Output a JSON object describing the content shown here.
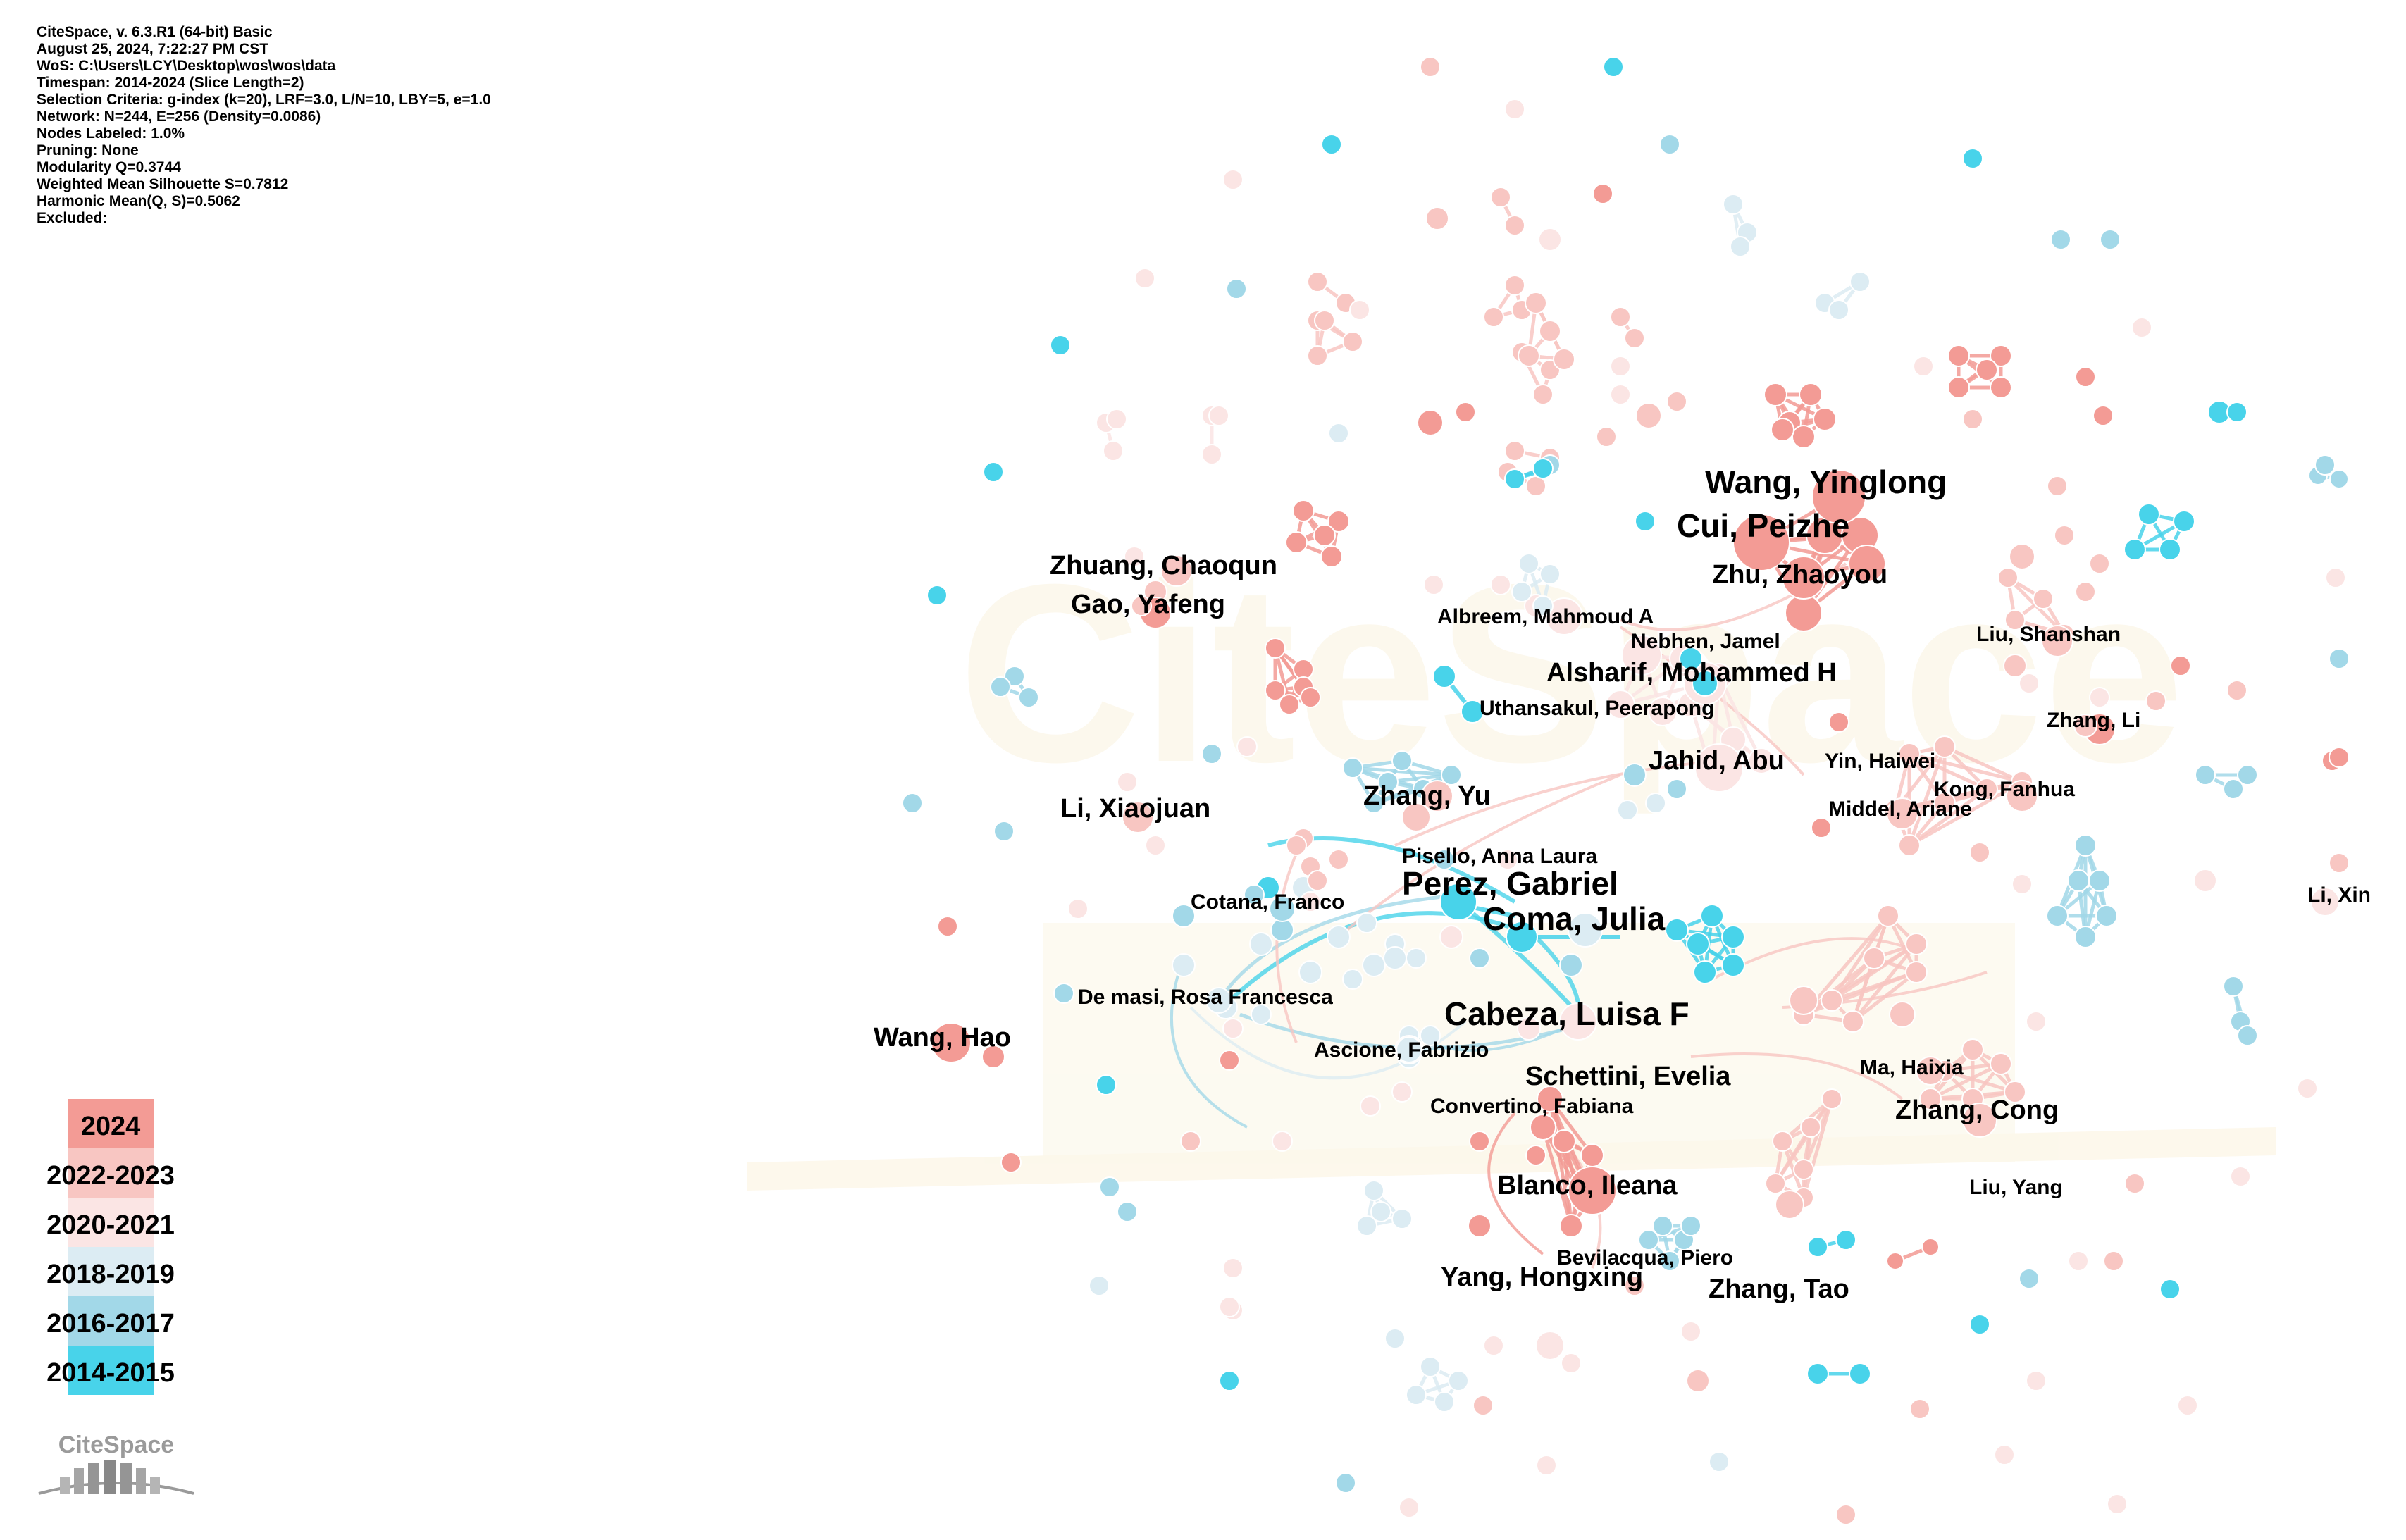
{
  "info": {
    "lines": [
      "CiteSpace, v. 6.3.R1 (64-bit) Basic",
      "August 25, 2024, 7:22:27 PM CST",
      "WoS: C:\\Users\\LCY\\Desktop\\wos\\wos\\data",
      "Timespan: 2014-2024 (Slice Length=2)",
      "Selection Criteria: g-index (k=20), LRF=3.0, L/N=10, LBY=5, e=1.0",
      "Network: N=244, E=256 (Density=0.0086)",
      "Nodes Labeled: 1.0%",
      "Pruning: None",
      "Modularity Q=0.3744",
      "Weighted Mean Silhouette S=0.7812",
      "Harmonic Mean(Q, S)=0.5062",
      "Excluded:"
    ]
  },
  "legend": [
    {
      "label": "2024",
      "color": "#f39b95"
    },
    {
      "label": "2022-2023",
      "color": "#f8c6c2"
    },
    {
      "label": "2020-2021",
      "color": "#fbe5e4"
    },
    {
      "label": "2018-2019",
      "color": "#dcecf3"
    },
    {
      "label": "2016-2017",
      "color": "#a2d8e8"
    },
    {
      "label": "2014-2015",
      "color": "#48d3ea"
    }
  ],
  "colors": {
    "c0": "#f39b95",
    "c1": "#f8c6c2",
    "c2": "#fbe5e4",
    "c3": "#dcecf3",
    "c4": "#a2d8e8",
    "c5": "#48d3ea"
  },
  "watermark": "CiteSpace",
  "logo_text": "CiteSpace",
  "authors": [
    {
      "name": "Wang, Yinglong",
      "size": "xl",
      "year": "2024"
    },
    {
      "name": "Cui, Peizhe",
      "size": "xl",
      "year": "2024"
    },
    {
      "name": "Perez, Gabriel",
      "size": "xl",
      "year": "2014-2015"
    },
    {
      "name": "Coma, Julia",
      "size": "xl",
      "year": "2018-2019"
    },
    {
      "name": "Cabeza, Luisa F",
      "size": "xl",
      "year": "2018-2019"
    },
    {
      "name": "Alsharif, Mohammed H",
      "size": "l",
      "year": "2020-2021"
    },
    {
      "name": "Zhu, Zhaoyou",
      "size": "l",
      "year": "2024"
    },
    {
      "name": "Jahid, Abu",
      "size": "l",
      "year": "2020-2021"
    },
    {
      "name": "Blanco, Ileana",
      "size": "l",
      "year": "2024"
    },
    {
      "name": "Yang, Hongxing",
      "size": "l",
      "year": "2022-2023"
    },
    {
      "name": "Zhang, Cong",
      "size": "l",
      "year": "2022-2023"
    },
    {
      "name": "Wang, Hao",
      "size": "l",
      "year": "2024"
    },
    {
      "name": "Zhuang, Chaoqun",
      "size": "l",
      "year": "2022-2023"
    },
    {
      "name": "Gao, Yafeng",
      "size": "l",
      "year": "2024"
    },
    {
      "name": "Zhang, Yu",
      "size": "l",
      "year": "2022-2023"
    },
    {
      "name": "Li, Xiaojuan",
      "size": "l",
      "year": "2022-2023"
    },
    {
      "name": "Schettini, Evelia",
      "size": "l",
      "year": "2024"
    },
    {
      "name": "Zhang, Tao",
      "size": "l",
      "year": "2020-2021"
    },
    {
      "name": "Nebhen, Jamel",
      "size": "m",
      "year": "2016-2017"
    },
    {
      "name": "Liu, Shanshan",
      "size": "m",
      "year": "2022-2023"
    },
    {
      "name": "Zhang, Li",
      "size": "m",
      "year": "2024"
    },
    {
      "name": "Kong, Fanhua",
      "size": "m",
      "year": "2022-2023"
    },
    {
      "name": "Yin, Haiwei",
      "size": "m",
      "year": "2022-2023"
    },
    {
      "name": "Middel, Ariane",
      "size": "m",
      "year": "2022-2023"
    },
    {
      "name": "Ma, Haixia",
      "size": "m",
      "year": "2022-2023"
    },
    {
      "name": "Liu, Yang",
      "size": "m",
      "year": "2020-2021"
    },
    {
      "name": "Convertino, Fabiana",
      "size": "m",
      "year": "2024"
    },
    {
      "name": "De masi, Rosa Francesca",
      "size": "m",
      "year": "2018-2019"
    },
    {
      "name": "Cotana, Franco",
      "size": "m",
      "year": "2016-2017"
    },
    {
      "name": "Pisello, Anna Laura",
      "size": "m",
      "year": "2018-2019"
    },
    {
      "name": "Bevilacqua, Piero",
      "size": "m",
      "year": "2016-2017"
    },
    {
      "name": "Albreem, Mahmoud A",
      "size": "m",
      "year": "2020-2021"
    },
    {
      "name": "Uthansakul, Peerapong",
      "size": "m",
      "year": "2014-2015"
    },
    {
      "name": "Ascione, Fabrizio",
      "size": "m",
      "year": "2018-2019"
    },
    {
      "name": "Li, Xin",
      "size": "m",
      "year": "2020-2021"
    }
  ]
}
